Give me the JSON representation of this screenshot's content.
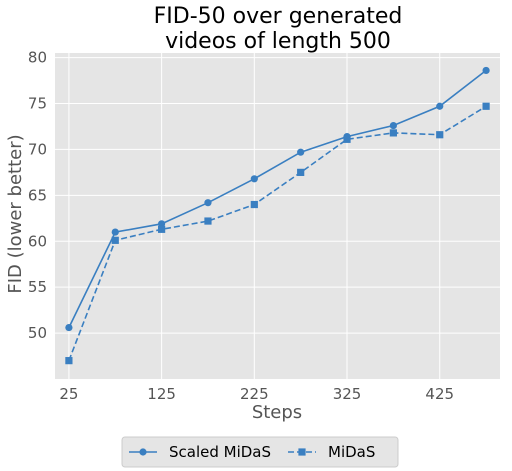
{
  "chart_data": {
    "type": "line",
    "title_lines": [
      "FID-50 over generated",
      "videos of length 500"
    ],
    "xlabel": "Steps",
    "ylabel": "FID (lower better)",
    "x": [
      25,
      75,
      125,
      175,
      225,
      275,
      325,
      375,
      425,
      475
    ],
    "xticks": [
      25,
      125,
      225,
      325,
      425
    ],
    "yticks": [
      50,
      55,
      60,
      65,
      70,
      75,
      80
    ],
    "xlim": [
      10,
      490
    ],
    "ylim": [
      45.0,
      80.5
    ],
    "grid": true,
    "legend_position": "bottom-center",
    "series": [
      {
        "name": "Scaled MiDaS",
        "marker": "circle",
        "linestyle": "solid",
        "color": "#3a7fc1",
        "values": [
          50.6,
          61.0,
          61.9,
          64.2,
          66.8,
          69.7,
          71.4,
          72.6,
          74.7,
          78.6
        ]
      },
      {
        "name": "MiDaS",
        "marker": "square",
        "linestyle": "dashed",
        "color": "#3a7fc1",
        "values": [
          47.0,
          60.1,
          61.3,
          62.2,
          64.0,
          67.5,
          71.1,
          71.8,
          71.6,
          74.7
        ]
      }
    ],
    "colors": {
      "plot_background": "#e5e5e5",
      "grid": "#ffffff",
      "legend_background": "#e5e5e5",
      "legend_border": "#cccccc"
    }
  }
}
